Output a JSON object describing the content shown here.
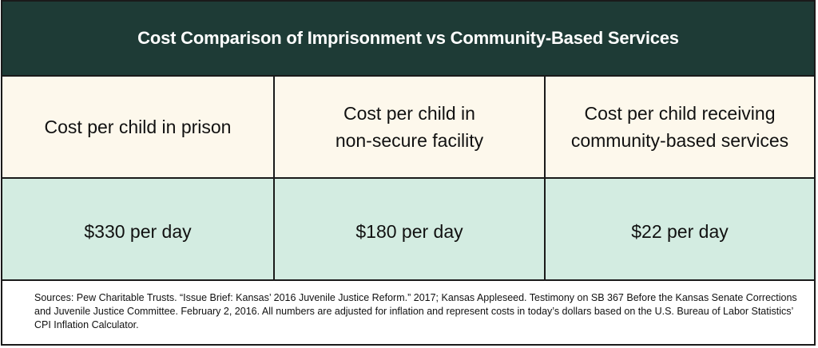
{
  "title": "Cost Comparison of Imprisonment vs Community-Based Services",
  "table": {
    "headers": [
      "Cost per child in prison",
      "Cost per child in\nnon-secure facility",
      "Cost per child receiving\ncommunity-based services"
    ],
    "values": [
      "$330 per day",
      "$180 per day",
      "$22 per day"
    ]
  },
  "sources": "Sources: Pew Charitable Trusts. “Issue Brief: Kansas’ 2016 Juvenile Justice Reform.” 2017; Kansas Appleseed. Testimony on SB 367 Before the Kansas Senate Corrections and Juvenile Justice Committee. February 2, 2016. All numbers are adjusted for inflation and represent costs in today’s dollars based on the U.S. Bureau of Labor Statistics’ CPI Inflation Calculator.",
  "colors": {
    "title_background": "#1e3b36",
    "header_row_background": "#fdf8ec",
    "value_row_background": "#d3ece1",
    "border": "#1a1a1a"
  }
}
